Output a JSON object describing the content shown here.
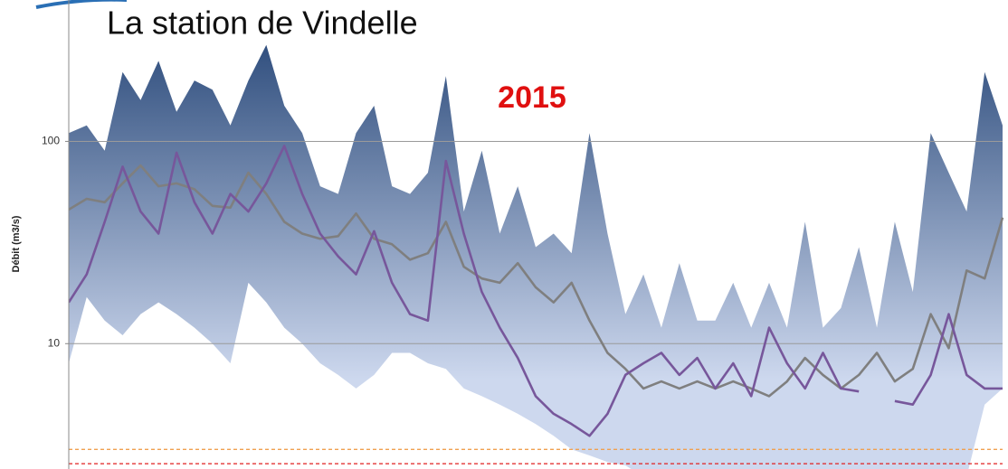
{
  "chart_data": {
    "type": "area",
    "title": "La station de Vindelle",
    "annotation": "2015",
    "y_label": "Débit (m3/s)",
    "ylog": true,
    "ylim": [
      2.4,
      500
    ],
    "yticks": [
      10,
      100
    ],
    "grid": true,
    "thresholds": [
      {
        "value": 3,
        "color": "#f0a050"
      },
      {
        "value": 2.55,
        "color": "#e02020"
      }
    ],
    "series": [
      {
        "style": "band-top",
        "color": "#2d4c7c",
        "color2": "#cdd8ee",
        "values": [
          110,
          120,
          90,
          220,
          160,
          250,
          140,
          200,
          180,
          120,
          200,
          300,
          150,
          110,
          60,
          55,
          110,
          150,
          60,
          55,
          70,
          210,
          45,
          90,
          35,
          60,
          30,
          35,
          28,
          110,
          35,
          14,
          22,
          12,
          25,
          13,
          13,
          20,
          12,
          20,
          12,
          40,
          12,
          15,
          30,
          12,
          40,
          18,
          110,
          70,
          45,
          220,
          120
        ]
      },
      {
        "style": "band-bottom",
        "color": "#ffffff",
        "values": [
          8,
          17,
          13,
          11,
          14,
          16,
          14,
          12,
          10,
          8,
          20,
          16,
          12,
          10,
          8,
          7,
          6,
          7,
          9,
          9,
          8,
          7.5,
          6,
          5.5,
          5,
          4.5,
          4,
          3.5,
          3,
          2.8,
          2.6,
          2.5,
          2.2,
          2,
          2,
          2,
          2,
          2,
          2,
          2,
          2,
          2,
          2,
          2,
          2,
          2,
          2,
          2,
          2,
          2,
          2.2,
          5,
          6
        ]
      },
      {
        "style": "line",
        "color": "#7f7f7f",
        "values": [
          46,
          52,
          50,
          62,
          76,
          60,
          62,
          58,
          48,
          47,
          70,
          55,
          40,
          35,
          33,
          34,
          44,
          33,
          31,
          26,
          28,
          40,
          24,
          21,
          20,
          25,
          19,
          16,
          20,
          13,
          9,
          7.5,
          6,
          6.5,
          6,
          6.5,
          6,
          6.5,
          6,
          5.5,
          6.5,
          8.5,
          7,
          6,
          7,
          9,
          6.5,
          7.5,
          14,
          9.5,
          23,
          21,
          42
        ]
      },
      {
        "style": "line",
        "color": "#77579b",
        "values": [
          16,
          22,
          40,
          75,
          45,
          35,
          88,
          50,
          35,
          55,
          45,
          62,
          95,
          55,
          35,
          27,
          22,
          36,
          20,
          14,
          13,
          80,
          35,
          18,
          12,
          8.5,
          5.5,
          4.5,
          4,
          3.5,
          4.5,
          7,
          8,
          9,
          7,
          8.5,
          6,
          8,
          5.5,
          12,
          8,
          6,
          9,
          6,
          5.8,
          null,
          5.2,
          5,
          7,
          14,
          7,
          6,
          6
        ]
      }
    ]
  }
}
